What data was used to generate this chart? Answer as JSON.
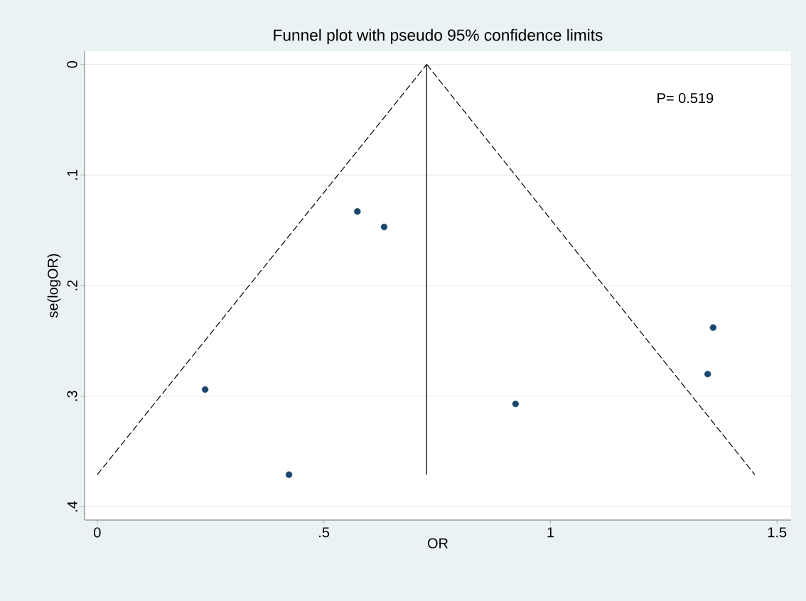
{
  "chart_data": {
    "type": "scatter",
    "title": "Funnel plot with pseudo 95% confidence limits",
    "xlabel": "OR",
    "ylabel": "se(logOR)",
    "annotations": [
      "P= 0.519"
    ],
    "series": [
      {
        "color": "#1a476f",
        "marker": "circle",
        "x": [
          0.238,
          0.423,
          0.574,
          0.633,
          0.923,
          1.347,
          1.359
        ],
        "values": [
          0.294,
          0.371,
          0.133,
          0.147,
          0.307,
          0.28,
          0.238
        ]
      },
      {
        "type": "line",
        "color": "#000000",
        "line_style": "dashed",
        "x": [
          0,
          0.727
        ],
        "values": [
          0.371,
          0
        ]
      },
      {
        "type": "line",
        "color": "#000000",
        "line_style": "dashed",
        "x": [
          0.727,
          1.451
        ],
        "values": [
          0,
          0.371
        ]
      },
      {
        "type": "line",
        "color": "#000000",
        "line_style": "solid",
        "x": [
          0.727,
          0.727
        ],
        "values": [
          0,
          0.371
        ]
      }
    ],
    "xlim": [
      -0.028,
      1.531
    ],
    "ylim": [
      0.412,
      -0.012
    ],
    "xticks": [
      0,
      {
        "value": 0.5,
        "label": ".5"
      },
      1,
      1.5
    ],
    "yticks": [
      0,
      {
        "value": 0.1,
        "label": ".1"
      },
      {
        "value": 0.2,
        "label": ".2"
      },
      {
        "value": 0.3,
        "label": ".3"
      },
      {
        "value": 0.4,
        "label": ".4"
      }
    ],
    "grid": "y"
  }
}
